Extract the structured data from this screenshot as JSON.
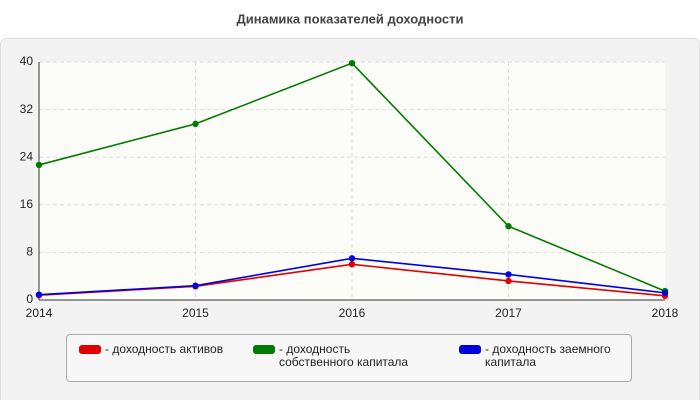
{
  "chart_data": {
    "type": "line",
    "title": "Динамика показателей доходности",
    "categories": [
      "2014",
      "2015",
      "2016",
      "2017",
      "2018"
    ],
    "series": [
      {
        "name": "- доходность активов",
        "color": "#e00000",
        "values": [
          0.8,
          2.3,
          6.0,
          3.2,
          0.7
        ]
      },
      {
        "name": "- доходность собственного капитала",
        "color": "#007a00",
        "values": [
          22.7,
          29.6,
          39.8,
          12.4,
          1.5
        ]
      },
      {
        "name": "- доходность заемного капитала",
        "color": "#0000e0",
        "values": [
          0.9,
          2.4,
          7.0,
          4.3,
          1.2
        ]
      }
    ],
    "ylim": [
      0,
      40
    ],
    "yticks": [
      0,
      8,
      16,
      24,
      32,
      40
    ],
    "grid": true
  }
}
